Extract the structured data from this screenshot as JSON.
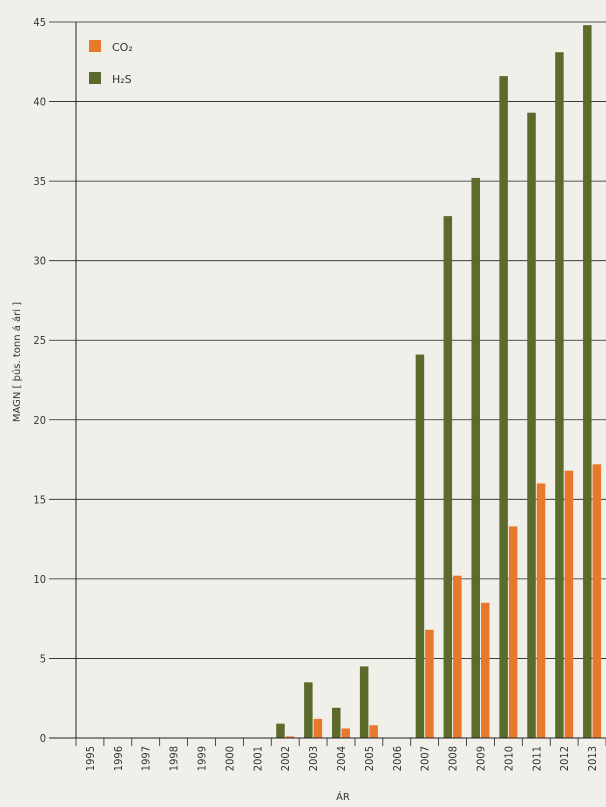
{
  "chart_data": {
    "type": "bar",
    "xlabel": "ÁR",
    "ylabel": "MAGN [ þús. tonn á ári ]",
    "ylim": [
      0,
      45
    ],
    "yticks": [
      0,
      5,
      10,
      15,
      20,
      25,
      30,
      35,
      40,
      45
    ],
    "grid": true,
    "legend_position": "top-left",
    "categories": [
      "1995",
      "1996",
      "1997",
      "1998",
      "1999",
      "2000",
      "2001",
      "2002",
      "2003",
      "2004",
      "2005",
      "2006",
      "2007",
      "2008",
      "2009",
      "2010",
      "2011",
      "2012",
      "2013"
    ],
    "series": [
      {
        "name": "CO₂",
        "color": "#e8782c",
        "values": [
          0,
          0,
          0,
          0,
          0,
          0,
          0,
          0.1,
          1.2,
          0.6,
          0.8,
          0,
          6.8,
          10.2,
          8.5,
          13.3,
          16.0,
          16.8,
          17.2
        ]
      },
      {
        "name": "H₂S",
        "color": "#5c6a2c",
        "values": [
          0,
          0,
          0,
          0,
          0,
          0,
          0,
          0.9,
          3.5,
          1.9,
          4.5,
          0,
          24.1,
          32.8,
          35.2,
          41.6,
          39.3,
          43.1,
          44.8
        ]
      }
    ]
  }
}
